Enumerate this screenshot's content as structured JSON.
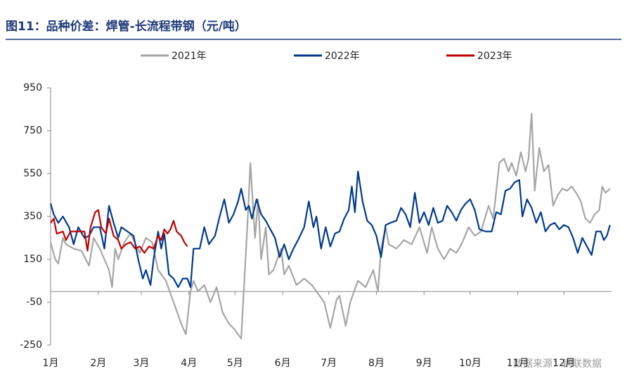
{
  "chart_data": {
    "type": "line",
    "title": "图11：品种价差：焊管-长流程带钢（元/吨）",
    "source": "数据来源：钢联数据",
    "xlim": [
      0,
      365
    ],
    "xticks": [
      {
        "value": 0,
        "label": "1月"
      },
      {
        "value": 31,
        "label": "2月"
      },
      {
        "value": 59,
        "label": "3月"
      },
      {
        "value": 90,
        "label": "4月"
      },
      {
        "value": 120,
        "label": "5月"
      },
      {
        "value": 151,
        "label": "6月"
      },
      {
        "value": 181,
        "label": "7月"
      },
      {
        "value": 212,
        "label": "8月"
      },
      {
        "value": 243,
        "label": "9月"
      },
      {
        "value": 273,
        "label": "10月"
      },
      {
        "value": 304,
        "label": "11月"
      },
      {
        "value": 334,
        "label": "12月"
      }
    ],
    "ylim": [
      -250,
      950
    ],
    "yticks": [
      950,
      750,
      550,
      350,
      150,
      -50,
      -250
    ],
    "series": [
      {
        "name": "2021年",
        "color": "#a6a6a6",
        "x": [
          0,
          3,
          5,
          8,
          10,
          15,
          20,
          25,
          28,
          32,
          35,
          38,
          40,
          42,
          44,
          48,
          52,
          58,
          62,
          66,
          70,
          75,
          80,
          85,
          88,
          91,
          93,
          96,
          100,
          104,
          108,
          112,
          116,
          120,
          124,
          128,
          130,
          133,
          135,
          137,
          140,
          142,
          145,
          150,
          152,
          155,
          160,
          165,
          170,
          175,
          178,
          182,
          186,
          188,
          192,
          195,
          200,
          205,
          210,
          213,
          215,
          218,
          220,
          225,
          230,
          235,
          240,
          245,
          248,
          252,
          256,
          260,
          264,
          268,
          272,
          276,
          280,
          285,
          288,
          292,
          295,
          298,
          300,
          303,
          306,
          309,
          311,
          313,
          315,
          318,
          321,
          324,
          327,
          330,
          333,
          336,
          339,
          342,
          345,
          348,
          351,
          354,
          357,
          359,
          361,
          364
        ],
        "values": [
          230,
          150,
          130,
          250,
          220,
          200,
          190,
          120,
          250,
          200,
          150,
          100,
          20,
          200,
          150,
          230,
          270,
          180,
          250,
          230,
          100,
          50,
          -50,
          -150,
          -200,
          0,
          50,
          0,
          30,
          -50,
          20,
          -100,
          -150,
          -180,
          -220,
          300,
          600,
          250,
          430,
          150,
          300,
          80,
          100,
          200,
          80,
          120,
          30,
          60,
          30,
          -20,
          -50,
          -170,
          -40,
          -20,
          -160,
          -50,
          50,
          20,
          100,
          0,
          200,
          300,
          220,
          200,
          240,
          220,
          300,
          180,
          300,
          200,
          150,
          200,
          180,
          230,
          300,
          260,
          280,
          400,
          340,
          600,
          620,
          560,
          600,
          540,
          650,
          560,
          620,
          830,
          470,
          670,
          560,
          590,
          400,
          450,
          480,
          470,
          490,
          460,
          420,
          340,
          320,
          360,
          380,
          490,
          460,
          480
        ]
      },
      {
        "name": "2022年",
        "color": "#003a8c",
        "x": [
          0,
          2,
          5,
          8,
          12,
          15,
          18,
          22,
          25,
          28,
          32,
          35,
          38,
          41,
          44,
          46,
          50,
          54,
          57,
          60,
          62,
          65,
          67,
          70,
          72,
          74,
          77,
          80,
          83,
          86,
          89,
          91,
          93,
          97,
          100,
          103,
          107,
          110,
          113,
          116,
          119,
          122,
          124,
          127,
          129,
          131,
          134,
          137,
          140,
          143,
          146,
          149,
          152,
          155,
          158,
          161,
          165,
          168,
          171,
          173,
          176,
          179,
          182,
          185,
          188,
          191,
          194,
          196,
          198,
          200,
          203,
          206,
          209,
          212,
          215,
          218,
          221,
          225,
          228,
          231,
          234,
          237,
          240,
          243,
          246,
          249,
          252,
          255,
          258,
          261,
          264,
          267,
          270,
          273,
          276,
          279,
          283,
          287,
          290,
          293,
          296,
          299,
          302,
          305,
          307,
          310,
          313,
          316,
          319,
          322,
          325,
          328,
          331,
          334,
          337,
          340,
          343,
          346,
          349,
          352,
          355,
          358,
          360,
          362,
          364
        ],
        "values": [
          410,
          360,
          320,
          350,
          300,
          220,
          300,
          250,
          260,
          300,
          300,
          200,
          400,
          320,
          250,
          300,
          280,
          260,
          150,
          60,
          100,
          30,
          150,
          280,
          200,
          270,
          80,
          60,
          20,
          60,
          60,
          20,
          200,
          200,
          300,
          220,
          260,
          350,
          430,
          320,
          360,
          420,
          480,
          380,
          400,
          340,
          430,
          360,
          330,
          290,
          250,
          160,
          220,
          150,
          200,
          240,
          300,
          420,
          300,
          350,
          200,
          300,
          210,
          270,
          280,
          340,
          380,
          490,
          370,
          560,
          420,
          330,
          310,
          260,
          160,
          310,
          320,
          330,
          390,
          360,
          300,
          460,
          320,
          370,
          310,
          390,
          320,
          330,
          400,
          370,
          330,
          380,
          410,
          430,
          380,
          290,
          280,
          280,
          370,
          360,
          470,
          480,
          510,
          520,
          350,
          430,
          390,
          320,
          370,
          280,
          310,
          320,
          290,
          310,
          300,
          250,
          180,
          250,
          210,
          170,
          280,
          280,
          240,
          260,
          310
        ]
      },
      {
        "name": "2023年",
        "color": "#c00000",
        "x": [
          0,
          2,
          4,
          8,
          10,
          13,
          18,
          22,
          24,
          26,
          29,
          31,
          33,
          36,
          38,
          41,
          44,
          46,
          49,
          52,
          55,
          58,
          61,
          64,
          67,
          70,
          72,
          74,
          76,
          78,
          80,
          82,
          85,
          87,
          89
        ],
        "values": [
          320,
          340,
          270,
          280,
          240,
          280,
          280,
          280,
          190,
          300,
          370,
          380,
          300,
          270,
          340,
          260,
          240,
          200,
          220,
          230,
          200,
          210,
          180,
          210,
          200,
          260,
          240,
          290,
          270,
          290,
          330,
          280,
          260,
          230,
          210
        ]
      }
    ]
  }
}
